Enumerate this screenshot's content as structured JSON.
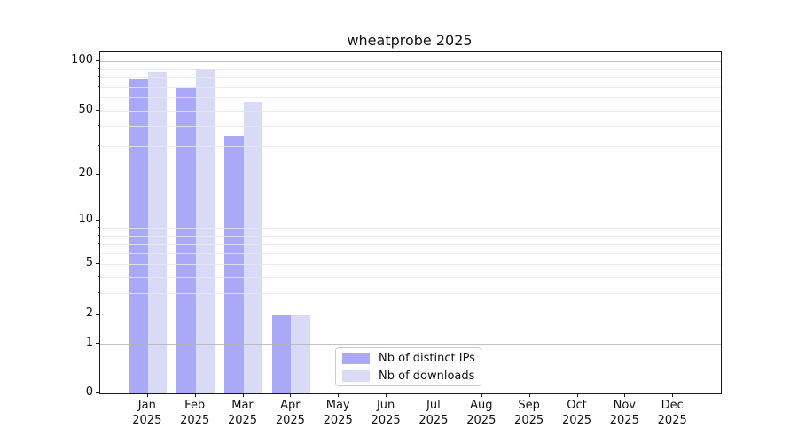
{
  "chart_data": {
    "type": "bar",
    "title": "wheatprobe 2025",
    "categories": [
      "Jan 2025",
      "Feb 2025",
      "Mar 2025",
      "Apr 2025",
      "May 2025",
      "Jun 2025",
      "Jul 2025",
      "Aug 2025",
      "Sep 2025",
      "Oct 2025",
      "Nov 2025",
      "Dec 2025"
    ],
    "series": [
      {
        "name": "Nb of distinct IPs",
        "color": "#a9a9f8",
        "values": [
          78,
          69,
          35,
          2,
          null,
          null,
          null,
          null,
          null,
          null,
          null,
          null
        ]
      },
      {
        "name": "Nb of downloads",
        "color": "#d9d9f8",
        "values": [
          86,
          89,
          56,
          2,
          null,
          null,
          null,
          null,
          null,
          null,
          null,
          null
        ]
      }
    ],
    "xlabel": "",
    "ylabel": "",
    "y_axis": {
      "scale": "log10(value+1)",
      "tick_labels": [
        0,
        1,
        2,
        5,
        10,
        20,
        50,
        100
      ],
      "major_grid_values": [
        1,
        10,
        100
      ],
      "minor_grid_values": [
        2,
        3,
        4,
        5,
        6,
        7,
        8,
        9,
        20,
        30,
        40,
        50,
        60,
        70,
        80,
        90
      ],
      "range_top": 113
    },
    "legend_position": "lower center",
    "grid": "horizontal, drawn over bars"
  }
}
